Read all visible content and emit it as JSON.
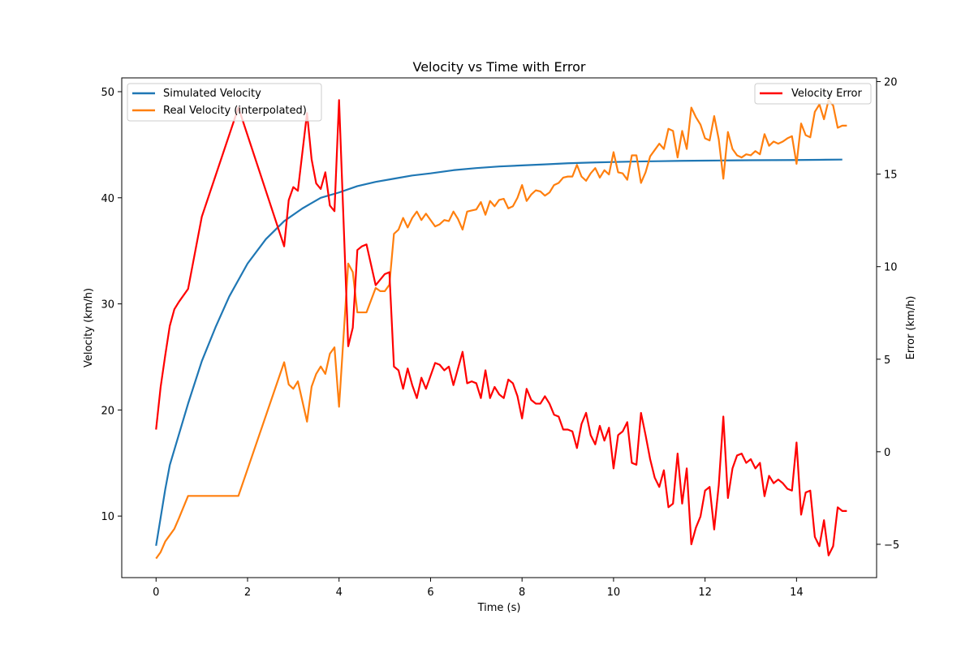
{
  "chart_data": {
    "type": "line",
    "title": "Velocity vs Time with Error",
    "xlabel": "Time (s)",
    "ylabel_left": "Velocity (km/h)",
    "ylabel_right": "Error (km/h)",
    "xlim": [
      -0.75,
      15.75
    ],
    "ylim_left": [
      4.2,
      51.3
    ],
    "ylim_right": [
      -6.8,
      20.2
    ],
    "xticks": [
      0,
      2,
      4,
      6,
      8,
      10,
      12,
      14
    ],
    "yticks_left": [
      10,
      20,
      30,
      40,
      50
    ],
    "yticks_right": [
      -5,
      0,
      5,
      10,
      15,
      20
    ],
    "grid": false,
    "legend_left_position": "upper-left",
    "legend_right_position": "upper-right",
    "colors": {
      "simulated": "#1f77b4",
      "real": "#ff7f0e",
      "error": "#ff0000"
    },
    "series_left": [
      {
        "name": "Simulated Velocity",
        "color": "#1f77b4",
        "x": [
          0,
          0.2,
          0.3,
          0.5,
          0.7,
          1.0,
          1.3,
          1.6,
          2.0,
          2.4,
          2.8,
          3.2,
          3.6,
          4.0,
          4.4,
          4.8,
          5.2,
          5.6,
          6.0,
          6.5,
          7.0,
          7.5,
          8.0,
          8.5,
          9.0,
          9.5,
          10.0,
          10.5,
          11.0,
          11.5,
          12.0,
          12.5,
          13.0,
          13.5,
          14.0,
          14.5,
          15.0
        ],
        "values": [
          7.2,
          12.5,
          14.8,
          17.7,
          20.6,
          24.6,
          27.8,
          30.7,
          33.8,
          36.1,
          37.8,
          39.0,
          40.0,
          40.5,
          41.1,
          41.5,
          41.8,
          42.1,
          42.3,
          42.6,
          42.8,
          42.95,
          43.05,
          43.15,
          43.25,
          43.32,
          43.37,
          43.42,
          43.45,
          43.48,
          43.5,
          43.52,
          43.54,
          43.55,
          43.56,
          43.58,
          43.6
        ]
      },
      {
        "name": "Real Velocity (interpolated)",
        "color": "#ff7f0e",
        "x": [
          0,
          0.1,
          0.2,
          0.3,
          0.4,
          0.5,
          0.7,
          1.0,
          1.8,
          2.8,
          2.9,
          3.0,
          3.1,
          3.3,
          3.4,
          3.5,
          3.6,
          3.7,
          3.8,
          3.9,
          4.0,
          4.2,
          4.3,
          4.4,
          4.5,
          4.6,
          4.8,
          4.9,
          5.0,
          5.1,
          5.2,
          5.3,
          5.4,
          5.5,
          5.6,
          5.7,
          5.8,
          5.9,
          6.0,
          6.1,
          6.2,
          6.3,
          6.4,
          6.5,
          6.6,
          6.7,
          6.8,
          6.9,
          7.0,
          7.1,
          7.2,
          7.3,
          7.4,
          7.5,
          7.6,
          7.7,
          7.8,
          7.9,
          8.0,
          8.1,
          8.2,
          8.3,
          8.4,
          8.5,
          8.6,
          8.7,
          8.8,
          8.9,
          9.0,
          9.1,
          9.2,
          9.3,
          9.4,
          9.5,
          9.6,
          9.7,
          9.8,
          9.9,
          10.0,
          10.1,
          10.2,
          10.3,
          10.4,
          10.5,
          10.6,
          10.7,
          10.8,
          10.9,
          11.0,
          11.1,
          11.2,
          11.3,
          11.4,
          11.5,
          11.6,
          11.7,
          11.8,
          11.9,
          12.0,
          12.1,
          12.2,
          12.3,
          12.4,
          12.5,
          12.6,
          12.7,
          12.8,
          12.9,
          13.0,
          13.1,
          13.2,
          13.3,
          13.4,
          13.5,
          13.6,
          13.7,
          13.8,
          13.9,
          14.0,
          14.1,
          14.2,
          14.3,
          14.4,
          14.5,
          14.6,
          14.7,
          14.8,
          14.9,
          15.0,
          15.1
        ],
        "values": [
          6.0,
          6.6,
          7.6,
          8.2,
          8.8,
          9.8,
          11.9,
          11.9,
          11.9,
          24.5,
          22.4,
          22.0,
          22.7,
          18.9,
          22.2,
          23.4,
          24.1,
          23.4,
          25.3,
          25.9,
          20.3,
          33.8,
          33.0,
          29.2,
          29.2,
          29.2,
          31.5,
          31.2,
          31.2,
          31.8,
          36.6,
          37.0,
          38.1,
          37.2,
          38.1,
          38.7,
          37.9,
          38.5,
          37.9,
          37.3,
          37.5,
          37.9,
          37.8,
          38.7,
          38.0,
          37.0,
          38.7,
          38.8,
          38.9,
          39.6,
          38.4,
          39.7,
          39.2,
          39.8,
          39.9,
          39.0,
          39.2,
          40.0,
          41.2,
          39.7,
          40.3,
          40.7,
          40.6,
          40.2,
          40.5,
          41.2,
          41.4,
          41.9,
          42.0,
          42.0,
          43.1,
          42.0,
          41.6,
          42.3,
          42.8,
          41.9,
          42.6,
          42.2,
          44.3,
          42.4,
          42.3,
          41.7,
          44.0,
          44.0,
          41.4,
          42.4,
          43.9,
          44.5,
          45.1,
          44.6,
          46.5,
          46.3,
          43.8,
          46.3,
          44.6,
          48.5,
          47.6,
          46.9,
          45.6,
          45.4,
          47.7,
          45.5,
          41.8,
          46.2,
          44.6,
          44.0,
          43.8,
          44.1,
          44.0,
          44.4,
          44.1,
          46.0,
          44.9,
          45.3,
          45.1,
          45.3,
          45.6,
          45.8,
          43.2,
          47.0,
          45.9,
          45.7,
          48.1,
          48.8,
          47.4,
          49.2,
          48.7,
          46.6,
          46.8,
          46.8
        ]
      }
    ],
    "series_right": [
      {
        "name": "Velocity Error",
        "color": "#ff0000",
        "x": [
          0,
          0.1,
          0.2,
          0.3,
          0.4,
          0.5,
          0.7,
          1.0,
          1.8,
          2.8,
          2.9,
          3.0,
          3.1,
          3.3,
          3.4,
          3.5,
          3.6,
          3.7,
          3.8,
          3.9,
          4.0,
          4.2,
          4.3,
          4.4,
          4.5,
          4.6,
          4.8,
          4.9,
          5.0,
          5.1,
          5.2,
          5.3,
          5.4,
          5.5,
          5.6,
          5.7,
          5.8,
          5.9,
          6.0,
          6.1,
          6.2,
          6.3,
          6.4,
          6.5,
          6.6,
          6.7,
          6.8,
          6.9,
          7.0,
          7.1,
          7.2,
          7.3,
          7.4,
          7.5,
          7.6,
          7.7,
          7.8,
          7.9,
          8.0,
          8.1,
          8.2,
          8.3,
          8.4,
          8.5,
          8.6,
          8.7,
          8.8,
          8.9,
          9.0,
          9.1,
          9.2,
          9.3,
          9.4,
          9.5,
          9.6,
          9.7,
          9.8,
          9.9,
          10.0,
          10.1,
          10.2,
          10.3,
          10.4,
          10.5,
          10.6,
          10.7,
          10.8,
          10.9,
          11.0,
          11.1,
          11.2,
          11.3,
          11.4,
          11.5,
          11.6,
          11.7,
          11.8,
          11.9,
          12.0,
          12.1,
          12.2,
          12.3,
          12.4,
          12.5,
          12.6,
          12.7,
          12.8,
          12.9,
          13.0,
          13.1,
          13.2,
          13.3,
          13.4,
          13.5,
          13.6,
          13.7,
          13.8,
          13.9,
          14.0,
          14.1,
          14.2,
          14.3,
          14.4,
          14.5,
          14.6,
          14.7,
          14.8,
          14.9,
          15.0,
          15.1
        ],
        "values": [
          1.2,
          3.5,
          5.2,
          6.8,
          7.7,
          8.1,
          8.8,
          12.7,
          18.6,
          11.1,
          13.6,
          14.3,
          14.1,
          18.3,
          15.8,
          14.5,
          14.2,
          15.1,
          13.3,
          13.0,
          19.0,
          5.7,
          6.7,
          10.9,
          11.1,
          11.2,
          9.0,
          9.3,
          9.6,
          9.7,
          4.6,
          4.4,
          3.4,
          4.5,
          3.6,
          2.9,
          4.0,
          3.4,
          4.1,
          4.8,
          4.7,
          4.4,
          4.6,
          3.6,
          4.5,
          5.4,
          3.7,
          3.8,
          3.7,
          2.9,
          4.4,
          2.9,
          3.5,
          3.1,
          2.9,
          3.9,
          3.7,
          3.0,
          1.8,
          3.4,
          2.8,
          2.6,
          2.6,
          3.0,
          2.6,
          2.0,
          1.9,
          1.2,
          1.2,
          1.1,
          0.2,
          1.5,
          2.1,
          0.9,
          0.4,
          1.4,
          0.6,
          1.3,
          -0.9,
          0.9,
          1.1,
          1.6,
          -0.6,
          -0.7,
          2.1,
          0.9,
          -0.4,
          -1.4,
          -1.9,
          -1.0,
          -3.0,
          -2.8,
          -0.1,
          -2.8,
          -0.9,
          -5.0,
          -4.1,
          -3.5,
          -2.1,
          -1.9,
          -4.2,
          -1.8,
          1.9,
          -2.5,
          -0.9,
          -0.2,
          -0.1,
          -0.6,
          -0.4,
          -0.9,
          -0.6,
          -2.4,
          -1.3,
          -1.7,
          -1.5,
          -1.7,
          -2.0,
          -2.1,
          0.5,
          -3.4,
          -2.2,
          -2.1,
          -4.6,
          -5.1,
          -3.7,
          -5.6,
          -5.1,
          -3.0,
          -3.2,
          -3.2
        ]
      }
    ]
  }
}
